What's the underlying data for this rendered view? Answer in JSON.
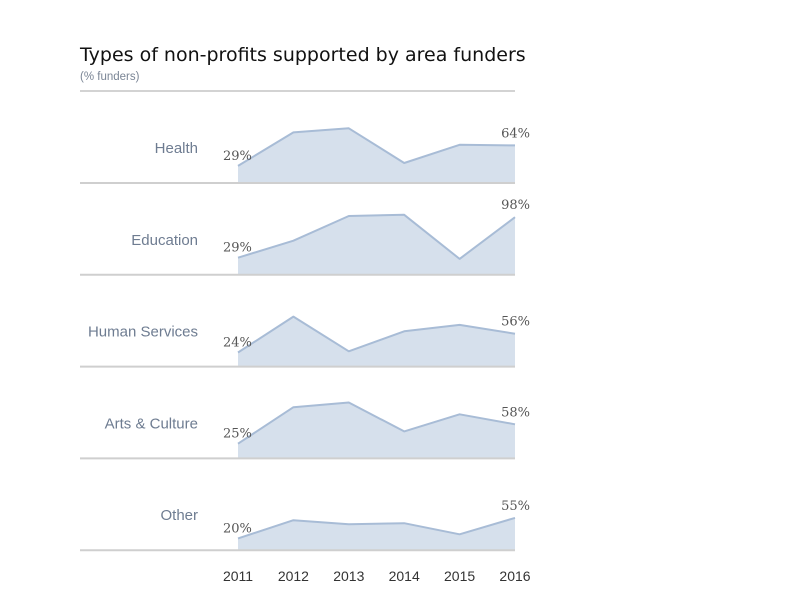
{
  "chart_data": {
    "type": "area",
    "title": "Types of non-profits supported by area funders",
    "subtitle": "(% funders)",
    "x": [
      "2011",
      "2012",
      "2013",
      "2014",
      "2015",
      "2016"
    ],
    "series": [
      {
        "name": "Health",
        "values": [
          29,
          86,
          93,
          34,
          65,
          64
        ],
        "first_label": "29%",
        "last_label": "64%"
      },
      {
        "name": "Education",
        "values": [
          29,
          58,
          100,
          102,
          27,
          98
        ],
        "first_label": "29%",
        "last_label": "98%"
      },
      {
        "name": "Human Services",
        "values": [
          24,
          85,
          26,
          60,
          71,
          56
        ],
        "first_label": "24%",
        "last_label": "56%"
      },
      {
        "name": "Arts & Culture",
        "values": [
          25,
          87,
          95,
          46,
          75,
          58
        ],
        "first_label": "25%",
        "last_label": "58%"
      },
      {
        "name": "Other",
        "values": [
          20,
          51,
          44,
          46,
          27,
          55
        ],
        "first_label": "20%",
        "last_label": "55%"
      }
    ],
    "ylim": [
      0,
      100
    ],
    "grid": false,
    "legend": "none",
    "colors": {
      "area_fill": "#d6e0ec",
      "line": "#a8bcd6",
      "baseline": "#cfcfcf"
    }
  }
}
